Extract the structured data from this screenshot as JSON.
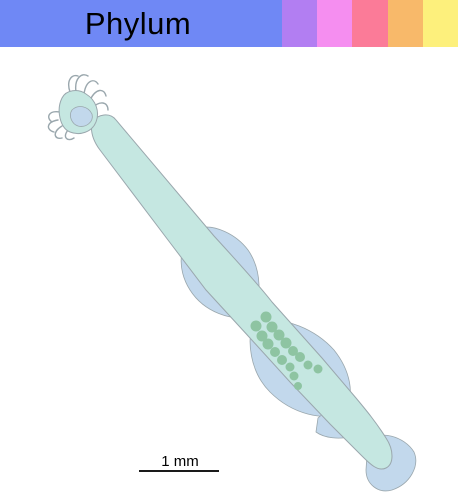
{
  "header": {
    "title": "Phylum",
    "title_bg": "#6f88f5",
    "swatches": [
      {
        "name": "purple",
        "color": "#b27ef2"
      },
      {
        "name": "pink",
        "color": "#f58ef0"
      },
      {
        "name": "rose",
        "color": "#fb7b98"
      },
      {
        "name": "orange",
        "color": "#f8b96a"
      },
      {
        "name": "yellow",
        "color": "#fdf07c"
      }
    ]
  },
  "scale_bar": {
    "label": "1 mm"
  },
  "colors": {
    "body_fill": "#c5e7e1",
    "trunk_fill": "#c2d8ec",
    "outline": "#9aa7ad",
    "gonad_fill": "#8ec4a2"
  }
}
